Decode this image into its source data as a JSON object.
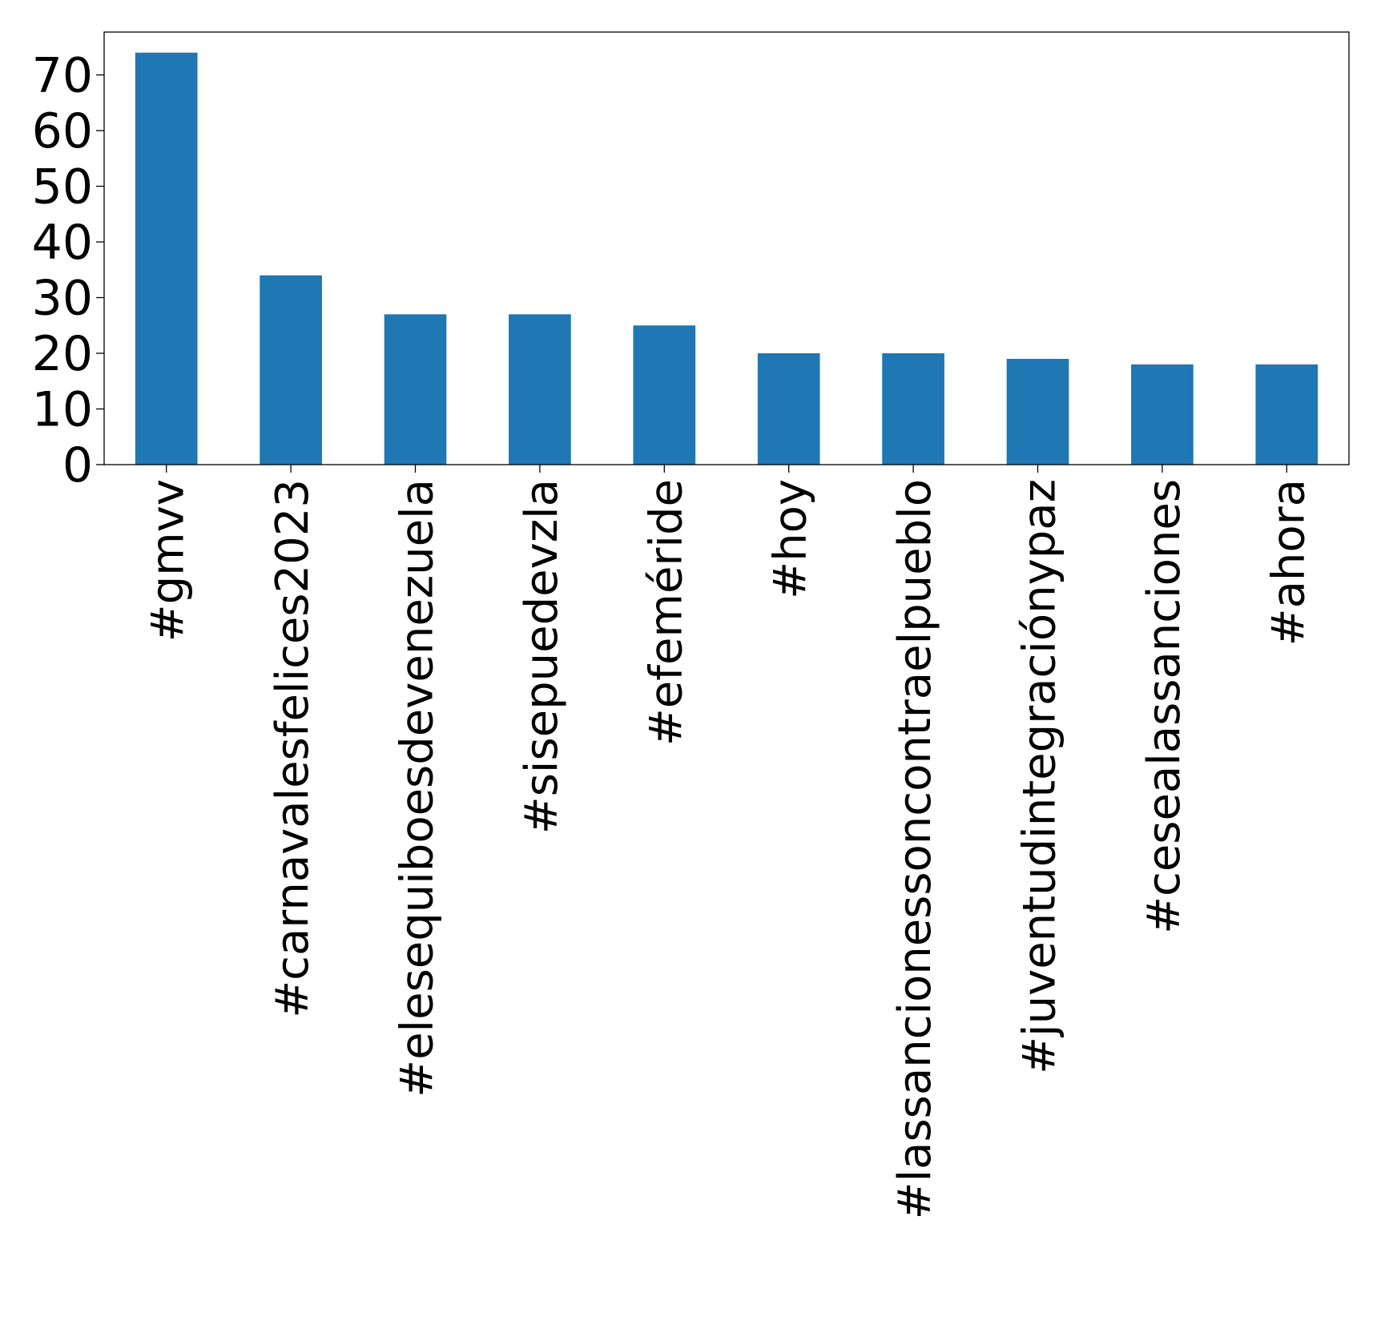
{
  "chart_data": {
    "type": "bar",
    "title": "",
    "xlabel": "",
    "ylabel": "",
    "categories": [
      "#gmvv",
      "#carnavalesfelices2023",
      "#elesequiboesdevenezuela",
      "#sisepuedevzla",
      "#efeméride",
      "#hoy",
      "#lassancionessoncontraelpueblo",
      "#juventudintegraciónypaz",
      "#cesealassanciones",
      "#ahora"
    ],
    "values": [
      74,
      34,
      27,
      27,
      25,
      20,
      20,
      19,
      18,
      18
    ],
    "ylim": [
      0,
      77.7
    ],
    "yticks": [
      0,
      10,
      20,
      30,
      40,
      50,
      60,
      70
    ],
    "grid": false,
    "legend": "none",
    "bar_color": "#1f77b4"
  }
}
